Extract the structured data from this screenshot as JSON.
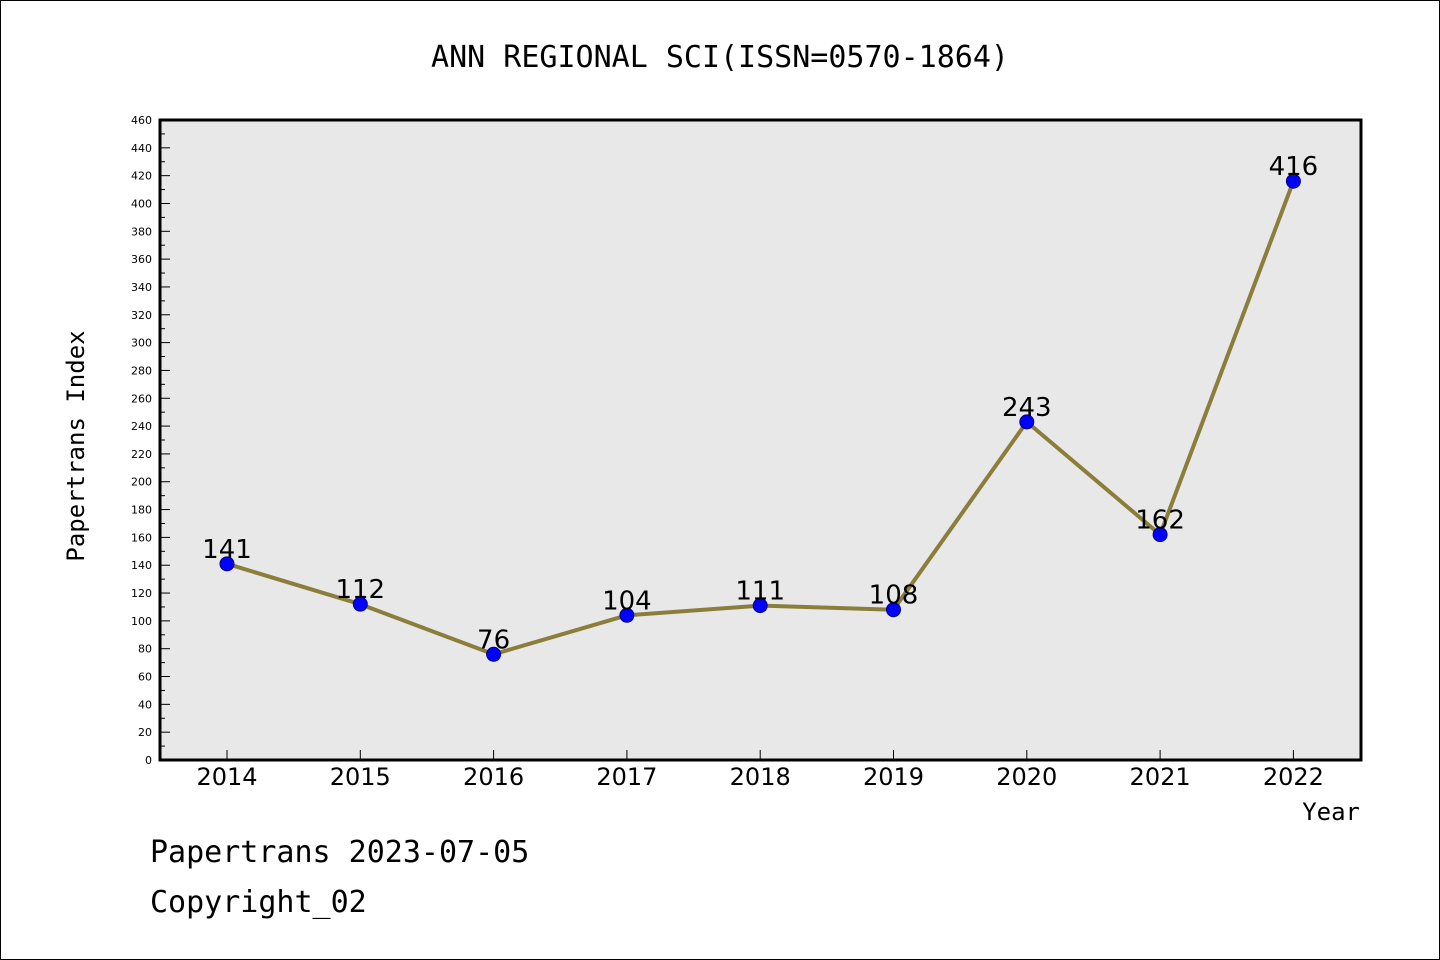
{
  "chart_data": {
    "type": "line",
    "title": "ANN REGIONAL SCI(ISSN=0570-1864)",
    "xlabel": "Year",
    "ylabel": "Papertrans Index",
    "categories": [
      "2014",
      "2015",
      "2016",
      "2017",
      "2018",
      "2019",
      "2020",
      "2021",
      "2022"
    ],
    "series": [
      {
        "values": [
          141,
          112,
          76,
          104,
          111,
          108,
          243,
          162,
          416
        ],
        "data_labels": [
          "141",
          "112",
          "76",
          "104",
          "111",
          "108",
          "243",
          "162",
          "416"
        ]
      }
    ],
    "ylim": [
      0,
      460
    ],
    "yticks": [
      0,
      20,
      40,
      60,
      80,
      100,
      120,
      140,
      160,
      180,
      200,
      220,
      240,
      260,
      280,
      300,
      320,
      340,
      360,
      380,
      400,
      420,
      440,
      460
    ],
    "grid": false,
    "legend": "none",
    "colors": {
      "line": "#8b7d3a",
      "marker_fill": "#0000ff",
      "marker_stroke": "#000080",
      "plot_background": "#e8e8e8"
    }
  },
  "footer": {
    "date_line": "Papertrans 2023-07-05",
    "copyright_line": "Copyright_02"
  }
}
